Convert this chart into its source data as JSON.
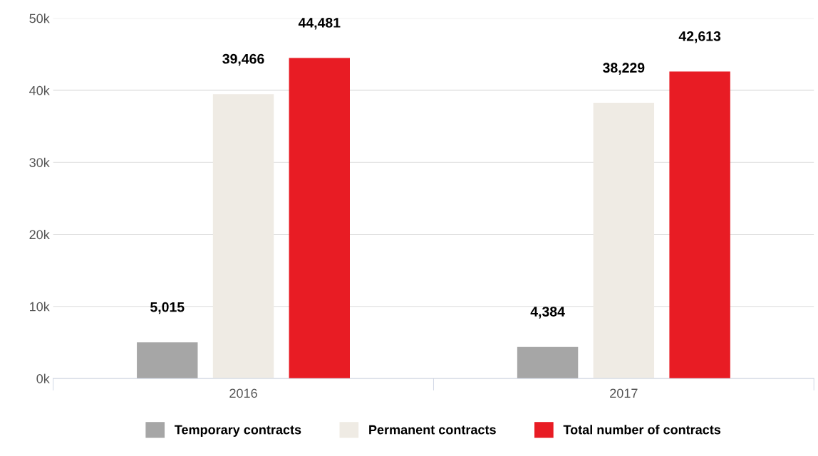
{
  "chart_data": {
    "type": "bar",
    "categories": [
      "2016",
      "2017"
    ],
    "series": [
      {
        "name": "Temporary contracts",
        "color": "#a6a6a6",
        "values": [
          5015,
          4384
        ],
        "value_labels": [
          "5,015",
          "4,384"
        ]
      },
      {
        "name": "Permanent contracts",
        "color": "#efebe4",
        "values": [
          39466,
          38229
        ],
        "value_labels": [
          "39,466",
          "38,229"
        ]
      },
      {
        "name": "Total number of contracts",
        "color": "#e81c24",
        "values": [
          44481,
          42613
        ],
        "value_labels": [
          "44,481",
          "42,613"
        ]
      }
    ],
    "ylim": [
      0,
      50000
    ],
    "yticks": [
      {
        "value": 0,
        "label": "0k"
      },
      {
        "value": 10000,
        "label": "10k"
      },
      {
        "value": 20000,
        "label": "20k"
      },
      {
        "value": 30000,
        "label": "30k"
      },
      {
        "value": 40000,
        "label": "40k"
      },
      {
        "value": 50000,
        "label": "50k"
      }
    ],
    "grid": "y",
    "legend": "bottom"
  }
}
